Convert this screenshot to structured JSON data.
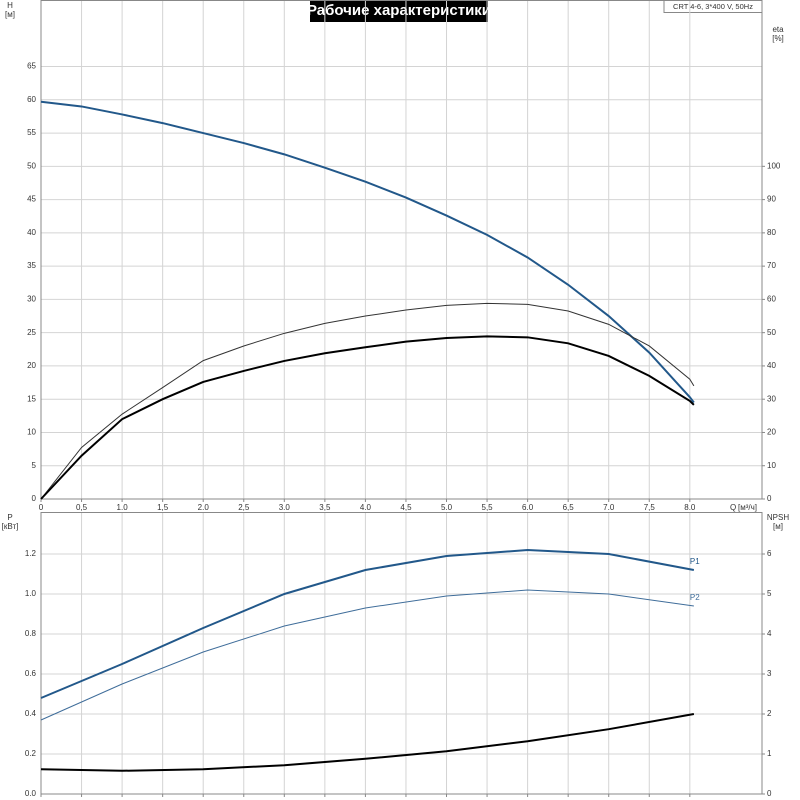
{
  "title": "Рабочие характеристики",
  "model": "CRT 4-6, 3*400 V, 50Hz",
  "chart_data": [
    {
      "type": "line",
      "ylabel": "H",
      "yunit": "[м]",
      "y2label": "eta",
      "y2unit": "[%]",
      "xlabel": "Q",
      "xunit": "[м³/ч]",
      "xlim": [
        0,
        8.89
      ],
      "xticks": [
        0,
        {
          "value": 0.5,
          "label": "0,5"
        },
        {
          "value": 1,
          "label": "1.0"
        },
        {
          "value": 1.5,
          "label": "1,5"
        },
        {
          "value": 2,
          "label": "2.0"
        },
        {
          "value": 2.5,
          "label": "2,5"
        },
        {
          "value": 3,
          "label": "3.0"
        },
        {
          "value": 3.5,
          "label": "3,5"
        },
        {
          "value": 4,
          "label": "4.0"
        },
        {
          "value": 4.5,
          "label": "4,5"
        },
        {
          "value": 5,
          "label": "5.0"
        },
        {
          "value": 5.5,
          "label": "5,5"
        },
        {
          "value": 6,
          "label": "6.0"
        },
        {
          "value": 6.5,
          "label": "6,5"
        },
        {
          "value": 7,
          "label": "7.0"
        },
        {
          "value": 7.5,
          "label": "7,5"
        },
        {
          "value": 8,
          "label": "8.0"
        }
      ],
      "ylim": [
        0,
        75
      ],
      "yticks": [
        0,
        5,
        10,
        15,
        20,
        25,
        30,
        35,
        40,
        45,
        50,
        55,
        60,
        65
      ],
      "y2lim": [
        0,
        150
      ],
      "y2ticks": [
        0,
        10,
        20,
        30,
        40,
        50,
        60,
        70,
        80,
        90,
        100
      ],
      "grid": true,
      "x": [
        0,
        0.5,
        1,
        1.5,
        2,
        2.5,
        3,
        3.5,
        4,
        4.5,
        5,
        5.5,
        6,
        6.5,
        7,
        7.5,
        8,
        8.05
      ],
      "series": [
        {
          "color": "#22588a",
          "width": 2,
          "values": [
            59.7,
            59,
            57.8,
            56.5,
            55,
            53.5,
            51.8,
            49.8,
            47.7,
            45.3,
            42.6,
            39.7,
            36.3,
            32.2,
            27.5,
            22,
            15.3,
            14.5
          ]
        },
        {
          "color": "#333333",
          "width": 1,
          "axis": "y2",
          "values": [
            0,
            15.5,
            25.5,
            33.5,
            41.6,
            46,
            49.8,
            52.8,
            55,
            56.8,
            58.2,
            58.8,
            58.5,
            56.5,
            52.5,
            46,
            36,
            34
          ]
        },
        {
          "color": "#000000",
          "width": 2,
          "axis": "y2",
          "values": [
            0,
            13,
            24,
            30,
            35.2,
            38.5,
            41.5,
            43.8,
            45.6,
            47.3,
            48.4,
            48.9,
            48.6,
            46.8,
            43,
            37,
            29.5,
            28.3
          ]
        }
      ]
    },
    {
      "type": "line",
      "ylabel": "P",
      "yunit": "[кВт]",
      "y2label": "NPSH",
      "y2unit": "[м]",
      "xlim": [
        0,
        8.89
      ],
      "ylim": [
        0,
        1.41
      ],
      "yticks": [
        {
          "value": 0,
          "label": "0.0"
        },
        0.2,
        0.4,
        0.6,
        0.8,
        {
          "value": 1,
          "label": "1.0"
        },
        1.2
      ],
      "y2lim": [
        0,
        7.05
      ],
      "y2ticks": [
        0,
        1,
        2,
        3,
        4,
        5,
        6
      ],
      "grid": true,
      "x": [
        0,
        1,
        2,
        3,
        4,
        5,
        6,
        7,
        8.05
      ],
      "series": [
        {
          "name": "P1",
          "color": "#22588a",
          "width": 2,
          "values": [
            0.48,
            0.65,
            0.83,
            1.0,
            1.12,
            1.19,
            1.22,
            1.2,
            1.12
          ]
        },
        {
          "name": "P2",
          "color": "#3f6d9a",
          "width": 1,
          "values": [
            0.37,
            0.55,
            0.71,
            0.84,
            0.93,
            0.99,
            1.02,
            1.0,
            0.94
          ]
        },
        {
          "color": "#000000",
          "width": 2,
          "axis": "y2",
          "values": [
            0.62,
            0.58,
            0.62,
            0.72,
            0.88,
            1.07,
            1.32,
            1.62,
            2.0
          ]
        }
      ]
    }
  ]
}
